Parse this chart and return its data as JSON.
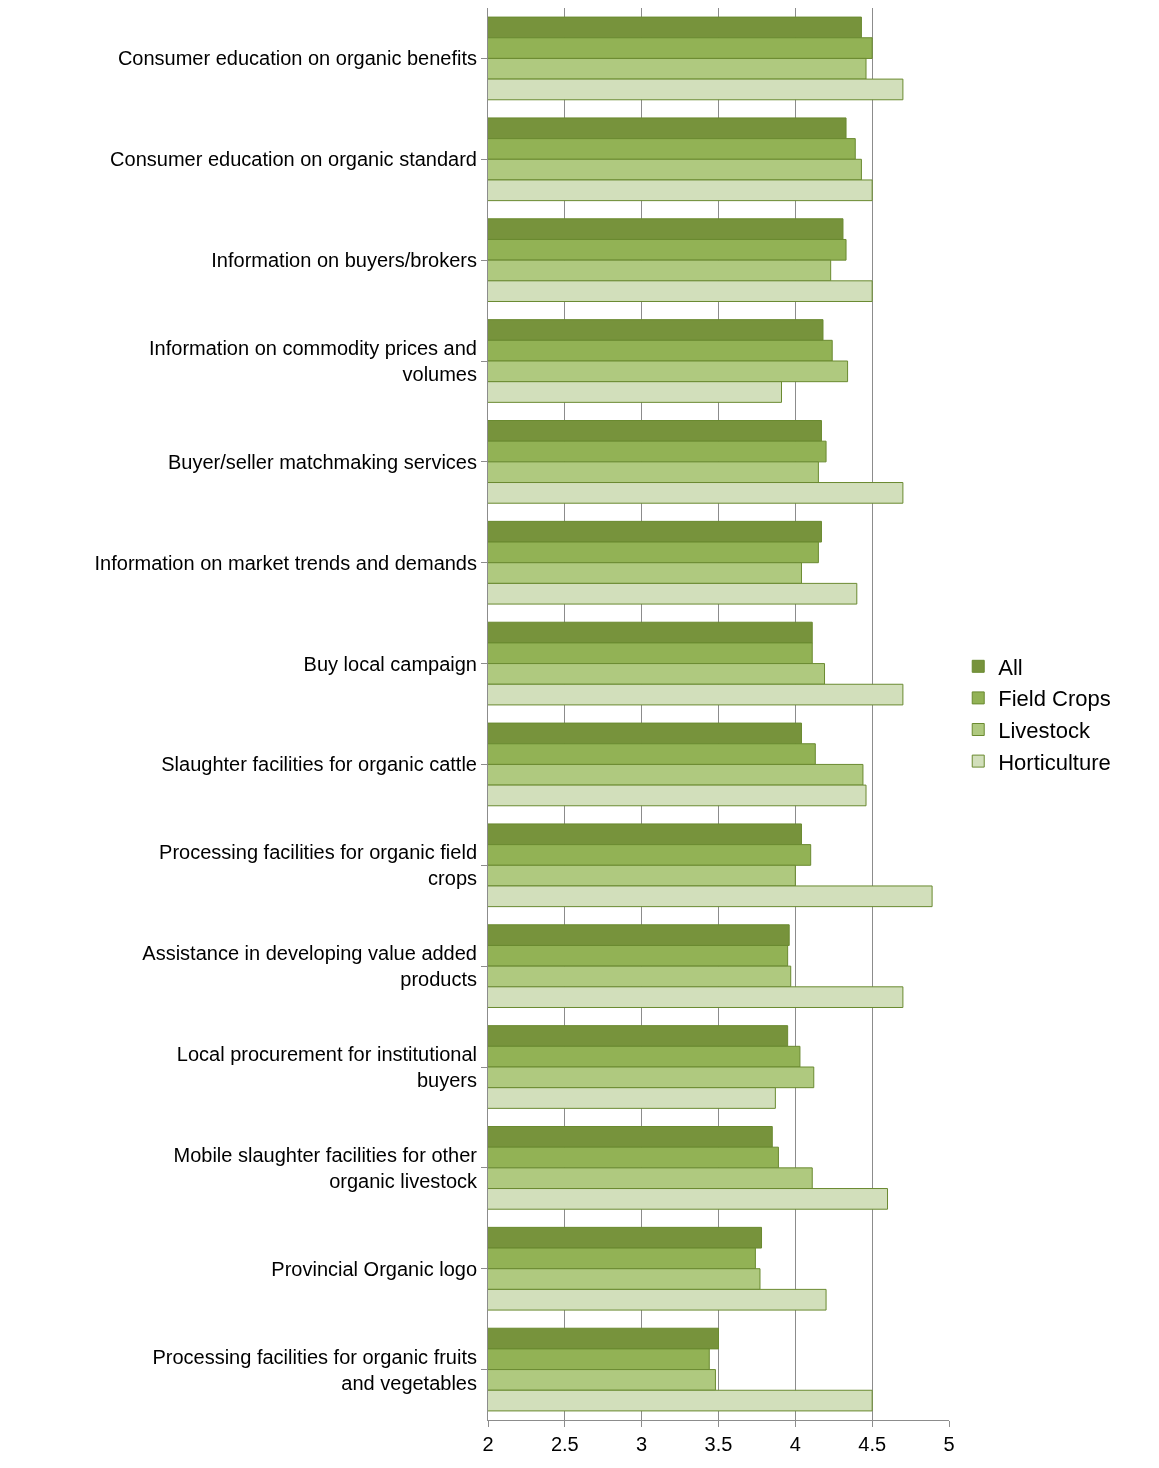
{
  "chart_data": {
    "type": "bar",
    "orientation": "horizontal",
    "categories": [
      "Consumer education on organic benefits",
      "Consumer education on organic standard",
      "Information on buyers/brokers",
      "Information on commodity prices and volumes",
      "Buyer/seller matchmaking services",
      "Information on market trends and demands",
      "Buy local campaign",
      "Slaughter facilities for organic cattle",
      "Processing facilities for organic field crops",
      "Assistance in developing value added products",
      "Local procurement for institutional buyers",
      "Mobile slaughter facilities for other organic livestock",
      "Provincial Organic logo",
      "Processing facilities for organic fruits and vegetables"
    ],
    "series": [
      {
        "name": "All",
        "color": "#77933c",
        "values": [
          4.43,
          4.33,
          4.31,
          4.18,
          4.17,
          4.17,
          4.11,
          4.04,
          4.04,
          3.96,
          3.95,
          3.85,
          3.78,
          3.5
        ]
      },
      {
        "name": "Field Crops",
        "color": "#92b255",
        "values": [
          4.5,
          4.39,
          4.33,
          4.24,
          4.2,
          4.15,
          4.11,
          4.13,
          4.1,
          3.95,
          4.03,
          3.89,
          3.74,
          3.44
        ]
      },
      {
        "name": "Livestock",
        "color": "#afc97f",
        "values": [
          4.46,
          4.43,
          4.23,
          4.34,
          4.15,
          4.04,
          4.19,
          4.44,
          4.0,
          3.97,
          4.12,
          4.11,
          3.77,
          3.48
        ]
      },
      {
        "name": "Horticulture",
        "color": "#d2dfbb",
        "values": [
          4.7,
          4.5,
          4.5,
          3.91,
          4.7,
          4.4,
          4.7,
          4.46,
          4.89,
          4.7,
          3.87,
          4.6,
          4.2,
          4.5
        ]
      }
    ],
    "xlim": [
      2,
      5
    ],
    "xticks": [
      2,
      2.5,
      3,
      3.5,
      4,
      4.5,
      5
    ],
    "grid": "x",
    "legend": "right"
  }
}
